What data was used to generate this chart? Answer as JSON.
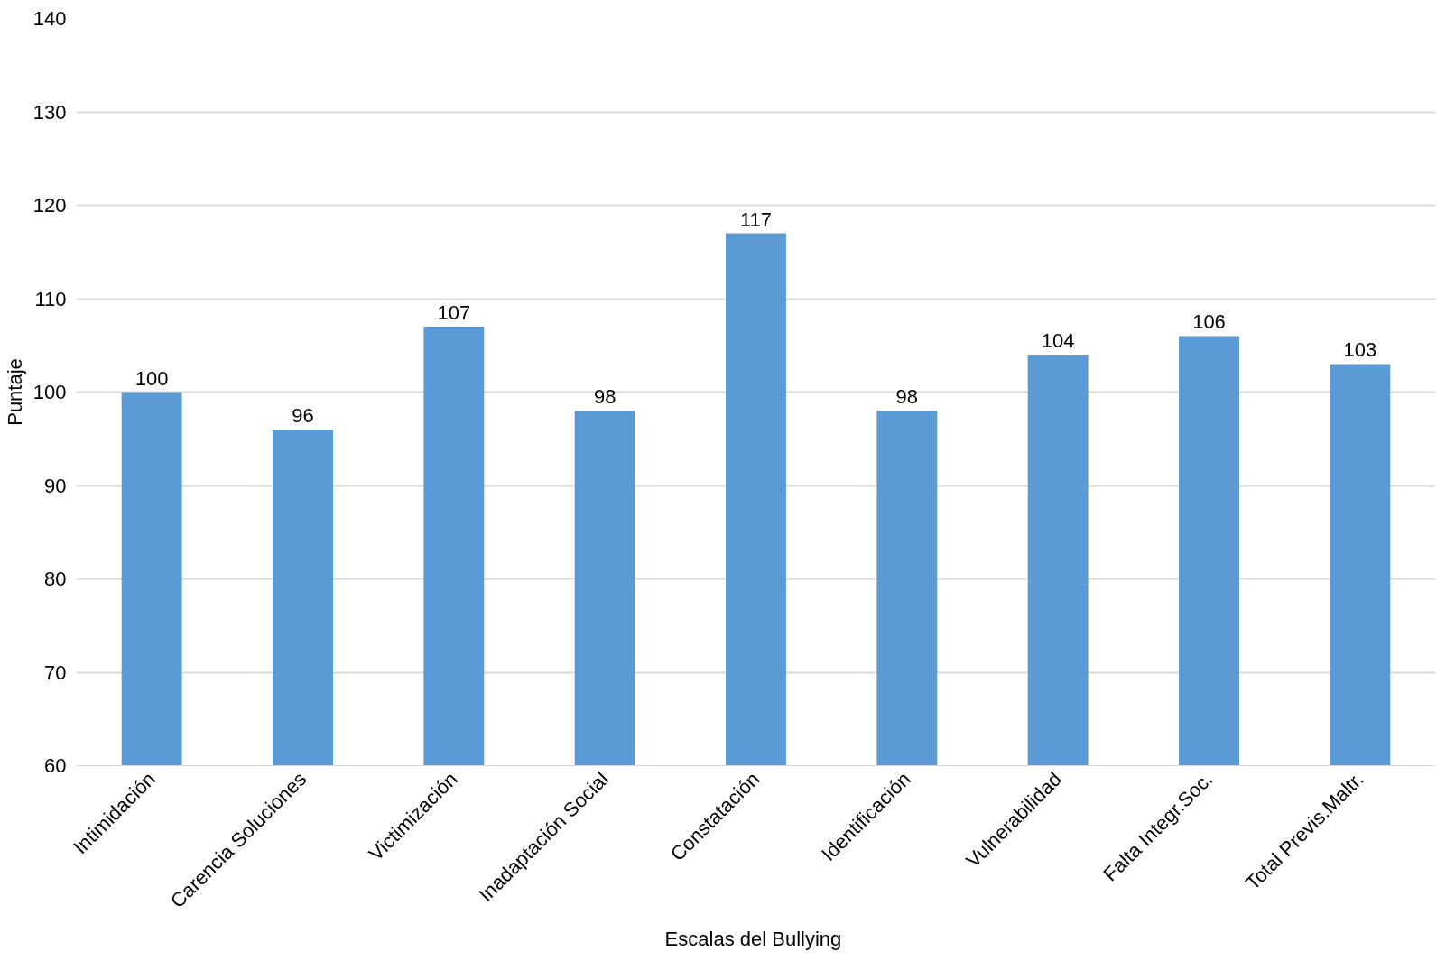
{
  "chart_data": {
    "type": "bar",
    "xlabel": "Escalas del  Bullying",
    "ylabel": "Puntaje",
    "categories": [
      "Intimidación",
      "Carencia Soluciones",
      "Victimización",
      "Inadaptación Social",
      "Constatación",
      "Identificación",
      "Vulnerabilidad",
      "Falta Integr.Soc.",
      "Total Previs.Maltr."
    ],
    "values": [
      100,
      96,
      107,
      98,
      117,
      98,
      104,
      106,
      103
    ],
    "color": "#5b9bd5",
    "ylim": [
      60,
      140
    ],
    "yticks": [
      60,
      70,
      80,
      90,
      100,
      110,
      120,
      130,
      140
    ],
    "grid": "y",
    "data_labels": true
  }
}
